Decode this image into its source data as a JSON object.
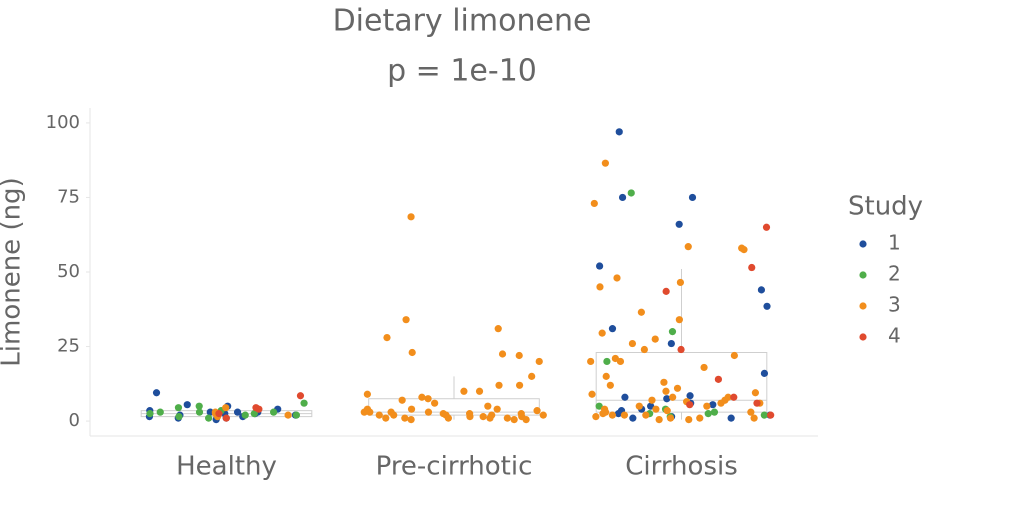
{
  "chart_data": {
    "type": "box_strip",
    "title": [
      "Dietary limonene",
      "p = 1e-10"
    ],
    "y_label": "Limonene (ng)",
    "categories": [
      "Healthy",
      "Pre-cirrhotic",
      "Cirrhosis"
    ],
    "ylim": [
      -5,
      105
    ],
    "yticks": [
      0,
      25,
      50,
      75,
      100
    ],
    "legend_title": "Study",
    "legend_position": "right",
    "boxes": [
      {
        "whisker_low": 0.5,
        "q1": 1.5,
        "median": 2.5,
        "q3": 3.5,
        "whisker_high": 6
      },
      {
        "whisker_low": 0.5,
        "q1": 2,
        "median": 3,
        "q3": 7.5,
        "whisker_high": 15
      },
      {
        "whisker_low": 0.5,
        "q1": 3,
        "median": 7,
        "q3": 23,
        "whisker_high": 51
      }
    ],
    "series": [
      {
        "name": "1",
        "color": "#1f4e9c",
        "values": [
          [
            2.5,
            3,
            9.5,
            2,
            0.5,
            5,
            3.5,
            2,
            1.5,
            3,
            5.5,
            4,
            2.5,
            1.5,
            1,
            1,
            3
          ],
          [],
          [
            97,
            75,
            66,
            75,
            52,
            44,
            38.5,
            31,
            26,
            16,
            8,
            7.5,
            6,
            5.5,
            4,
            3.5,
            2,
            1.5,
            1,
            8.5,
            5,
            2.5,
            1
          ]
        ]
      },
      {
        "name": "2",
        "color": "#4fae4a",
        "values": [
          [
            3,
            5,
            2.5,
            6,
            1.5,
            2,
            3.5,
            4.5,
            2,
            1,
            3,
            2.5,
            3
          ],
          [],
          [
            76.5,
            30,
            20,
            5,
            4,
            3,
            2.5,
            2,
            2.5,
            1.5
          ]
        ]
      },
      {
        "name": "3",
        "color": "#f28e1c",
        "values": [
          [
            4.5,
            3,
            2,
            1.5,
            2.5
          ],
          [
            68.5,
            34,
            31,
            28,
            23,
            22.5,
            22,
            20,
            15,
            12,
            12,
            10,
            10,
            9,
            8,
            7.5,
            7,
            6,
            5,
            4,
            4,
            3.5,
            3,
            3,
            2.5,
            2.5,
            2,
            2,
            2,
            1.5,
            1.5,
            1,
            1,
            1,
            0.5,
            0.5,
            4,
            3,
            2,
            1,
            1.5,
            2.5,
            1,
            0.5,
            2,
            3
          ],
          [
            86.5,
            73,
            58.5,
            58,
            57.5,
            48,
            46.5,
            45,
            36.5,
            34,
            29.5,
            27.5,
            26,
            24,
            22,
            21,
            20,
            20,
            18,
            15,
            13,
            12,
            11,
            10,
            9,
            8,
            8,
            7,
            7,
            6,
            6,
            5,
            5,
            4,
            4,
            3,
            3,
            2.5,
            2,
            2,
            1.5,
            1,
            1,
            0.5,
            0.5,
            9.5,
            6.5,
            3.5,
            2,
            1
          ]
        ]
      },
      {
        "name": "4",
        "color": "#e04a2e",
        "values": [
          [
            4.5,
            1,
            8.5,
            4,
            2.5
          ],
          [],
          [
            65,
            51.5,
            43.5,
            24,
            14,
            8,
            6,
            5.5,
            2
          ]
        ]
      }
    ]
  }
}
